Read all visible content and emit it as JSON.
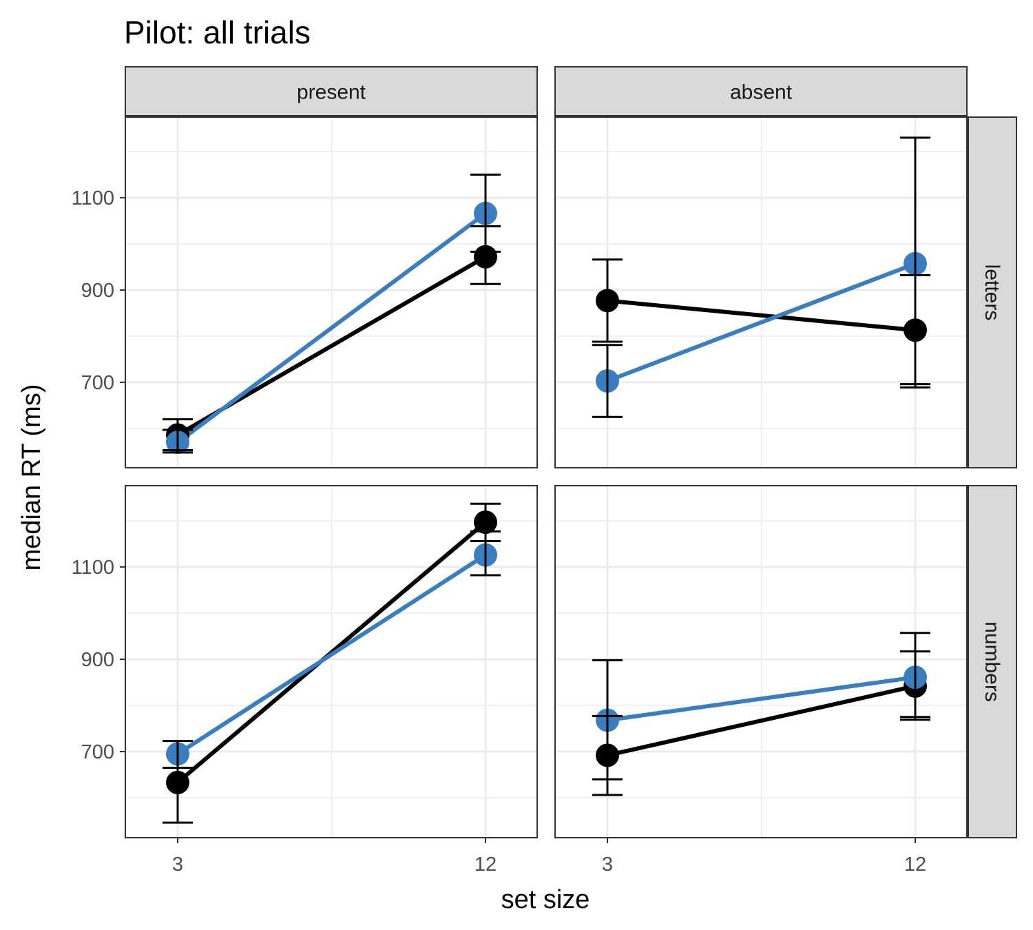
{
  "chart_data": {
    "type": "line",
    "title": "Pilot: all trials",
    "xlabel": "set size",
    "ylabel": "median RT (ms)",
    "x_ticks": [
      3,
      12
    ],
    "y_ticks": [
      700,
      900,
      1100
    ],
    "col_facets": [
      "present",
      "absent"
    ],
    "row_facets": [
      "letters",
      "numbers"
    ],
    "colors": {
      "black_series": "#000000",
      "blue_series": "#3a7ebf"
    },
    "panels": [
      {
        "col": "present",
        "row": "letters",
        "series": [
          {
            "color": "#000000",
            "x": [
              3,
              12
            ],
            "y": [
              586,
              972
            ],
            "ymin": [
              553,
              913
            ],
            "ymax": [
              620,
              1038
            ]
          },
          {
            "color": "#3a7ebf",
            "x": [
              3,
              12
            ],
            "y": [
              570,
              1066
            ],
            "ymin": [
              548,
              983
            ],
            "ymax": [
              597,
              1150
            ]
          }
        ]
      },
      {
        "col": "absent",
        "row": "letters",
        "series": [
          {
            "color": "#000000",
            "x": [
              3,
              12
            ],
            "y": [
              877,
              813
            ],
            "ymin": [
              788,
              696
            ],
            "ymax": [
              966,
              1230
            ]
          },
          {
            "color": "#3a7ebf",
            "x": [
              3,
              12
            ],
            "y": [
              703,
              957
            ],
            "ymin": [
              625,
              689
            ],
            "ymax": [
              781,
              932
            ]
          }
        ]
      },
      {
        "col": "present",
        "row": "numbers",
        "series": [
          {
            "color": "#000000",
            "x": [
              3,
              12
            ],
            "y": [
              633,
              1197
            ],
            "ymin": [
              546,
              1156
            ],
            "ymax": [
              665,
              1237
            ]
          },
          {
            "color": "#3a7ebf",
            "x": [
              3,
              12
            ],
            "y": [
              695,
              1126
            ],
            "ymin": [
              665,
              1082
            ],
            "ymax": [
              723,
              1177
            ]
          }
        ]
      },
      {
        "col": "absent",
        "row": "numbers",
        "series": [
          {
            "color": "#000000",
            "x": [
              3,
              12
            ],
            "y": [
              692,
              842
            ],
            "ymin": [
              606,
              769
            ],
            "ymax": [
              777,
              917
            ]
          },
          {
            "color": "#3a7ebf",
            "x": [
              3,
              12
            ],
            "y": [
              768,
              861
            ],
            "ymin": [
              640,
              775
            ],
            "ymax": [
              898,
              957
            ]
          }
        ]
      }
    ],
    "grid": true
  }
}
